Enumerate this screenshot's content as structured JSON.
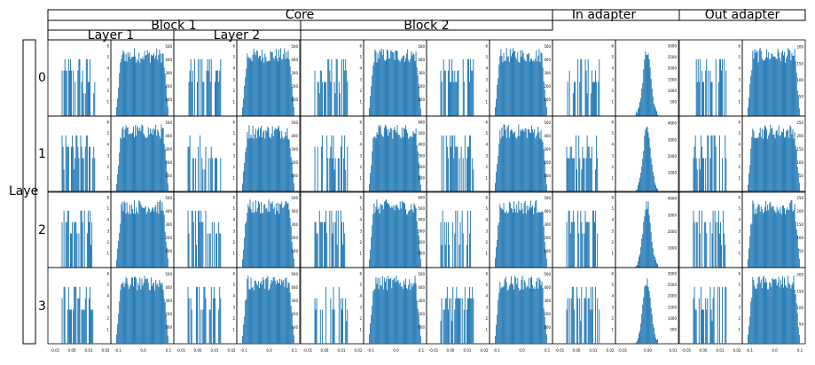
{
  "figure": {
    "row_axis_label": "Laye",
    "header_top": [
      "Core",
      "In adapter",
      "Out adapter"
    ],
    "header_mid": [
      "Block 1",
      "Block 2"
    ],
    "header_sub": [
      "Layer 1",
      "Layer 2"
    ],
    "rows": [
      "0",
      "1",
      "2",
      "3"
    ]
  },
  "style": {
    "bar_color": "#1f77b4",
    "frame_color": "#000000"
  },
  "chart_data": {
    "type": "histogram-grid",
    "title": "",
    "columns": 12,
    "rows": 4,
    "column_kinds": [
      "sparse",
      "dense",
      "sparse",
      "dense",
      "sparse",
      "dense",
      "sparse",
      "dense",
      "sparse",
      "peaked",
      "sparse",
      "dense"
    ],
    "x_tick_labels": {
      "sparse": [
        "-0.01",
        "0.00",
        "0.01",
        "0.02"
      ],
      "dense": [
        "-0.1",
        "0.0",
        "0.1"
      ],
      "peaked": [
        "-0.01",
        "0.00",
        "0.01"
      ]
    },
    "y_tick_labels": {
      "sparse_small": [
        "1",
        "2",
        "3",
        "4",
        "5",
        "6"
      ],
      "dense_500": [
        "100",
        "200",
        "300",
        "400",
        "500"
      ],
      "dense_600": [
        "100",
        "200",
        "300",
        "400",
        "500",
        "600"
      ],
      "peaked_3000": [
        "500",
        "1000",
        "1500",
        "2000",
        "2500",
        "3000"
      ],
      "peaked_4000": [
        "1000",
        "2000",
        "3000",
        "4000"
      ],
      "dense_200": [
        "50",
        "100",
        "150",
        "200"
      ],
      "dense_250": [
        "50",
        "100",
        "150",
        "200",
        "250"
      ]
    },
    "cell_y_ticks": [
      [
        "sparse_small",
        "dense_500",
        "sparse_small",
        "dense_500",
        "sparse_small",
        "dense_500",
        "sparse_small",
        "dense_500",
        "sparse_small",
        "peaked_3000",
        "sparse_small",
        "dense_200"
      ],
      [
        "sparse_small",
        "dense_500",
        "sparse_small",
        "dense_500",
        "sparse_small",
        "dense_600",
        "sparse_small",
        "dense_500",
        "sparse_small",
        "peaked_4000",
        "sparse_small",
        "dense_250"
      ],
      [
        "sparse_small",
        "dense_500",
        "sparse_small",
        "dense_500",
        "sparse_small",
        "dense_600",
        "sparse_small",
        "dense_500",
        "sparse_small",
        "peaked_4000",
        "sparse_small",
        "dense_250"
      ],
      [
        "sparse_small",
        "dense_500",
        "sparse_small",
        "dense_500",
        "sparse_small",
        "dense_500",
        "sparse_small",
        "dense_500",
        "sparse_small",
        "peaked_3000",
        "sparse_small",
        "dense_200"
      ]
    ],
    "bins": 60,
    "sparse_max_count": 6,
    "dense_shape": "plateau",
    "peaked_shape": "narrow-peak",
    "grid": false,
    "legend": "none"
  }
}
